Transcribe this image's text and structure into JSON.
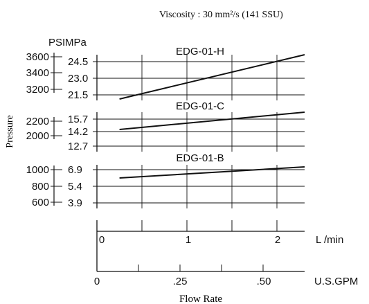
{
  "chart_data": {
    "type": "line",
    "title": "Viscosity : 30 mm²/s (141 SSU)",
    "ylabel": "Pressure",
    "xlabel": "Flow Rate",
    "y_units": [
      "PSI",
      "MPa"
    ],
    "x_axes": [
      {
        "unit": "L /min",
        "ticks": [
          "0",
          "1",
          "2"
        ],
        "range": [
          0,
          2.3
        ]
      },
      {
        "unit": "U.S.GPM",
        "ticks": [
          "0",
          ".25",
          ".50"
        ],
        "range": [
          0,
          0.608
        ]
      }
    ],
    "panels": [
      {
        "name": "EDG-01-H",
        "psi_ticks": [
          "3600",
          "3400",
          "3200"
        ],
        "mpa_ticks": [
          "24.5",
          "23.0",
          "21.5"
        ],
        "ylim_mpa": [
          21.0,
          26.0
        ],
        "series": [
          {
            "name": "EDG-01-H",
            "x": [
              0.25,
              2.3
            ],
            "y": [
              21.1,
              25.6
            ]
          }
        ]
      },
      {
        "name": "EDG-01-C",
        "psi_ticks": [
          "2200",
          "2000"
        ],
        "mpa_ticks": [
          "15.7",
          "14.2",
          "12.7"
        ],
        "ylim_mpa": [
          12.7,
          16.6
        ],
        "series": [
          {
            "name": "EDG-01-C",
            "x": [
              0.25,
              2.3
            ],
            "y": [
              14.4,
              16.0
            ]
          }
        ]
      },
      {
        "name": "EDG-01-B",
        "psi_ticks": [
          "1000",
          "800",
          "600"
        ],
        "mpa_ticks": [
          "6.9",
          "5.4",
          "3.9"
        ],
        "ylim_mpa": [
          3.9,
          7.8
        ],
        "series": [
          {
            "name": "EDG-01-B",
            "x": [
              0.25,
              2.3
            ],
            "y": [
              6.35,
              7.15
            ]
          }
        ]
      }
    ],
    "grid": true
  }
}
